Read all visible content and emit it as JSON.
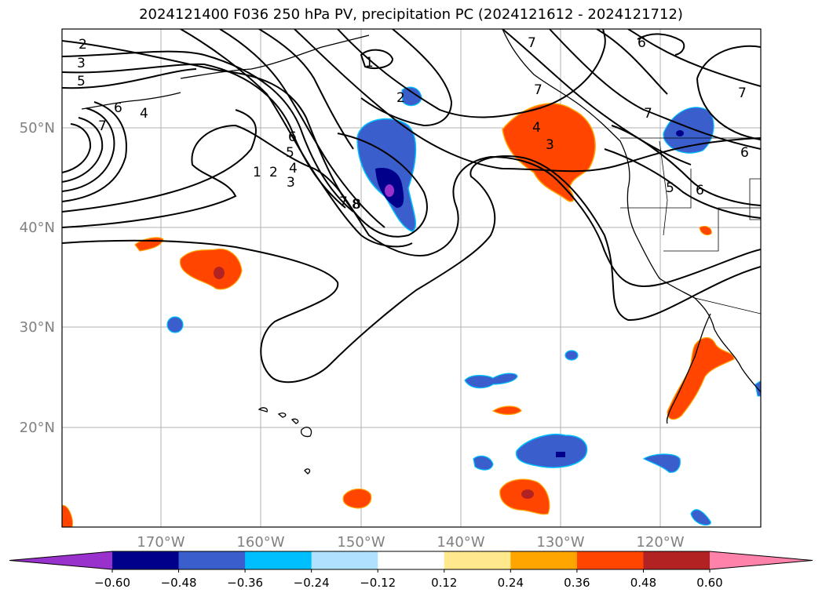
{
  "title": "2024121400 F036 250 hPa PV, precipitation PC (2024121612 - 2024121712)",
  "lat_labels": [
    "50°N",
    "40°N",
    "30°N",
    "20°N"
  ],
  "lon_labels": [
    "170°W",
    "160°W",
    "150°W",
    "140°W",
    "130°W",
    "120°W"
  ],
  "colorbar": {
    "ticks": [
      "−0.60",
      "−0.48",
      "−0.36",
      "−0.24",
      "−0.12",
      "0.12",
      "0.24",
      "0.36",
      "0.48",
      "0.60"
    ],
    "colors": [
      "#9932cc",
      "#00008b",
      "#3a5fcd",
      "#00bfff",
      "#b0e2ff",
      "#ffffff",
      "#ffe98c",
      "#ffa500",
      "#ff4500",
      "#b22222",
      "#ff82ab"
    ]
  },
  "pv_contour_labels": [
    "1",
    "2",
    "3",
    "4",
    "5",
    "6",
    "7",
    "8",
    "1",
    "2",
    "2",
    "3",
    "4",
    "5",
    "6",
    "7",
    "7",
    "4",
    "3",
    "5",
    "6",
    "6",
    "7",
    "7",
    "6",
    "8",
    "7"
  ]
}
